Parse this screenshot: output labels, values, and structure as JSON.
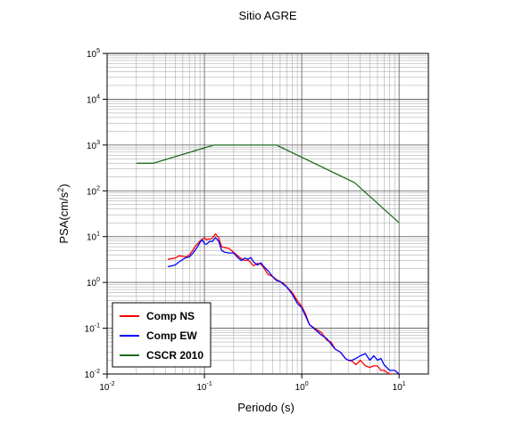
{
  "chart_data": {
    "type": "line",
    "title": "Sitio AGRE",
    "xlabel": "Periodo (s)",
    "ylabel_main": "PSA(cm/s",
    "ylabel_sup": "2",
    "ylabel_close": ")",
    "x_scale": "log",
    "y_scale": "log",
    "xlim": [
      0.01,
      20
    ],
    "ylim": [
      0.01,
      100000
    ],
    "grid": true,
    "legend_position": "bottom-left",
    "x_ticks": [
      {
        "value": 0.01,
        "base": "10",
        "exp": "-2"
      },
      {
        "value": 0.1,
        "base": "10",
        "exp": "-1"
      },
      {
        "value": 1,
        "base": "10",
        "exp": "0"
      },
      {
        "value": 10,
        "base": "10",
        "exp": "1"
      }
    ],
    "y_ticks": [
      {
        "value": 0.01,
        "base": "10",
        "exp": "-2"
      },
      {
        "value": 0.1,
        "base": "10",
        "exp": "-1"
      },
      {
        "value": 1,
        "base": "10",
        "exp": "0"
      },
      {
        "value": 10,
        "base": "10",
        "exp": "1"
      },
      {
        "value": 100,
        "base": "10",
        "exp": "2"
      },
      {
        "value": 1000,
        "base": "10",
        "exp": "3"
      },
      {
        "value": 10000,
        "base": "10",
        "exp": "4"
      },
      {
        "value": 100000,
        "base": "10",
        "exp": "5"
      }
    ],
    "series": [
      {
        "name": "Comp NS",
        "color": "#ff0000",
        "x": [
          0.042,
          0.05,
          0.055,
          0.06,
          0.065,
          0.07,
          0.075,
          0.08,
          0.085,
          0.09,
          0.095,
          0.1,
          0.105,
          0.11,
          0.115,
          0.12,
          0.13,
          0.14,
          0.15,
          0.16,
          0.18,
          0.2,
          0.22,
          0.24,
          0.26,
          0.28,
          0.3,
          0.32,
          0.35,
          0.38,
          0.4,
          0.45,
          0.5,
          0.55,
          0.6,
          0.65,
          0.7,
          0.8,
          0.9,
          1.0,
          1.1,
          1.2,
          1.4,
          1.6,
          1.8,
          2.0,
          2.2,
          2.5,
          2.8,
          3.0,
          3.3,
          3.6,
          4.0,
          4.5,
          5.0,
          5.5,
          6.0,
          6.5,
          7.0,
          8.0,
          9.0
        ],
        "y": [
          3.2,
          3.4,
          3.8,
          3.7,
          3.6,
          4.0,
          4.8,
          6.0,
          7.0,
          8.0,
          8.8,
          9.5,
          8.5,
          8.9,
          8.8,
          9.2,
          11.5,
          9.5,
          6.0,
          5.8,
          5.5,
          4.5,
          3.8,
          3.3,
          3.0,
          3.1,
          2.7,
          2.3,
          2.6,
          2.5,
          2.2,
          1.5,
          1.35,
          1.15,
          1.05,
          0.95,
          0.8,
          0.6,
          0.4,
          0.3,
          0.2,
          0.12,
          0.095,
          0.08,
          0.055,
          0.05,
          0.035,
          0.03,
          0.022,
          0.02,
          0.019,
          0.016,
          0.02,
          0.015,
          0.014,
          0.015,
          0.015,
          0.012,
          0.012,
          0.01,
          0.01
        ]
      },
      {
        "name": "Comp EW",
        "color": "#0000ff",
        "x": [
          0.042,
          0.05,
          0.055,
          0.06,
          0.065,
          0.07,
          0.075,
          0.08,
          0.085,
          0.09,
          0.095,
          0.1,
          0.105,
          0.11,
          0.115,
          0.12,
          0.13,
          0.14,
          0.15,
          0.16,
          0.18,
          0.2,
          0.22,
          0.24,
          0.26,
          0.28,
          0.3,
          0.32,
          0.35,
          0.38,
          0.4,
          0.45,
          0.5,
          0.55,
          0.6,
          0.65,
          0.7,
          0.8,
          0.9,
          1.0,
          1.1,
          1.2,
          1.4,
          1.6,
          1.8,
          2.0,
          2.2,
          2.5,
          2.8,
          3.0,
          3.3,
          3.6,
          4.0,
          4.5,
          5.0,
          5.5,
          6.0,
          6.5,
          7.0,
          8.0,
          9.0,
          10.0
        ],
        "y": [
          2.2,
          2.4,
          2.8,
          3.2,
          3.5,
          3.6,
          4.2,
          5.0,
          6.0,
          7.5,
          8.5,
          7.0,
          6.8,
          7.5,
          8.0,
          7.8,
          9.5,
          8.0,
          5.0,
          4.6,
          4.4,
          4.4,
          3.5,
          3.0,
          3.4,
          3.2,
          3.5,
          2.8,
          2.4,
          2.7,
          2.3,
          1.8,
          1.35,
          1.1,
          1.05,
          0.9,
          0.8,
          0.55,
          0.35,
          0.28,
          0.18,
          0.12,
          0.09,
          0.07,
          0.06,
          0.045,
          0.035,
          0.03,
          0.022,
          0.02,
          0.02,
          0.022,
          0.025,
          0.028,
          0.02,
          0.025,
          0.02,
          0.022,
          0.016,
          0.012,
          0.012,
          0.01
        ]
      },
      {
        "name": "CSCR 2010",
        "color": "#1e6b1e",
        "x": [
          0.02,
          0.03,
          0.125,
          0.55,
          3.5,
          10
        ],
        "y": [
          400,
          400,
          1000,
          1000,
          150,
          20
        ]
      }
    ]
  }
}
